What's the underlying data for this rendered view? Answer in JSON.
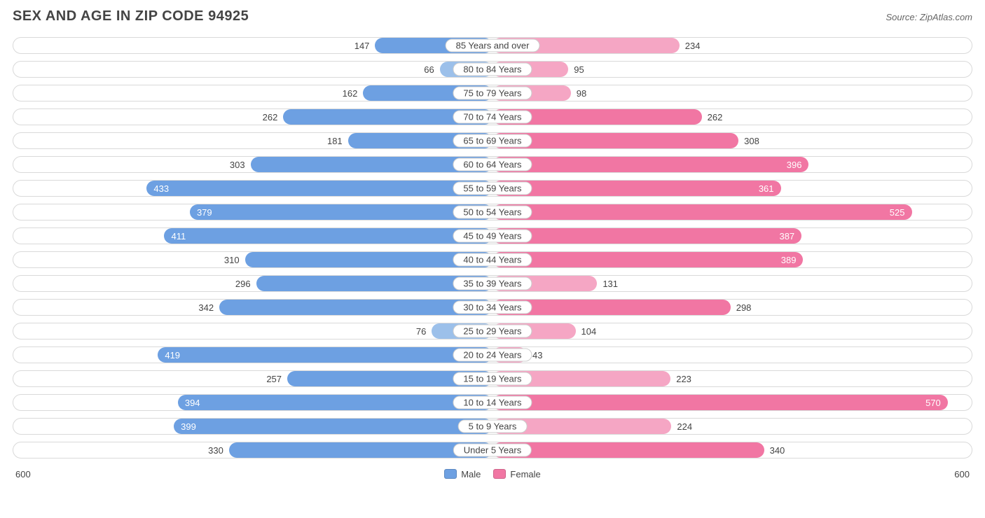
{
  "title": "SEX AND AGE IN ZIP CODE 94925",
  "source": "Source: ZipAtlas.com",
  "chart": {
    "type": "population-pyramid",
    "axis_max": 600,
    "axis_label_left": "600",
    "axis_label_right": "600",
    "male_color": "#6da0e2",
    "female_color": "#f176a3",
    "male_color_light": "#9cc0ea",
    "female_color_light": "#f5a6c4",
    "track_border_color": "#d9d9d9",
    "background_color": "#ffffff",
    "label_fontsize": 13,
    "title_fontsize": 20,
    "inside_label_threshold": 350,
    "legend": {
      "male_label": "Male",
      "female_label": "Female"
    },
    "rows": [
      {
        "category": "85 Years and over",
        "male": 147,
        "female": 234,
        "female_light": true
      },
      {
        "category": "80 to 84 Years",
        "male": 66,
        "female": 95,
        "male_light": true,
        "female_light": true
      },
      {
        "category": "75 to 79 Years",
        "male": 162,
        "female": 98,
        "female_light": true
      },
      {
        "category": "70 to 74 Years",
        "male": 262,
        "female": 262
      },
      {
        "category": "65 to 69 Years",
        "male": 181,
        "female": 308
      },
      {
        "category": "60 to 64 Years",
        "male": 303,
        "female": 396
      },
      {
        "category": "55 to 59 Years",
        "male": 433,
        "female": 361
      },
      {
        "category": "50 to 54 Years",
        "male": 379,
        "female": 525
      },
      {
        "category": "45 to 49 Years",
        "male": 411,
        "female": 387
      },
      {
        "category": "40 to 44 Years",
        "male": 310,
        "female": 389
      },
      {
        "category": "35 to 39 Years",
        "male": 296,
        "female": 131,
        "female_light": true
      },
      {
        "category": "30 to 34 Years",
        "male": 342,
        "female": 298
      },
      {
        "category": "25 to 29 Years",
        "male": 76,
        "female": 104,
        "male_light": true,
        "female_light": true
      },
      {
        "category": "20 to 24 Years",
        "male": 419,
        "female": 43,
        "female_light": true
      },
      {
        "category": "15 to 19 Years",
        "male": 257,
        "female": 223,
        "female_light": true
      },
      {
        "category": "10 to 14 Years",
        "male": 394,
        "female": 570
      },
      {
        "category": "5 to 9 Years",
        "male": 399,
        "female": 224,
        "female_light": true
      },
      {
        "category": "Under 5 Years",
        "male": 330,
        "female": 340
      }
    ]
  }
}
